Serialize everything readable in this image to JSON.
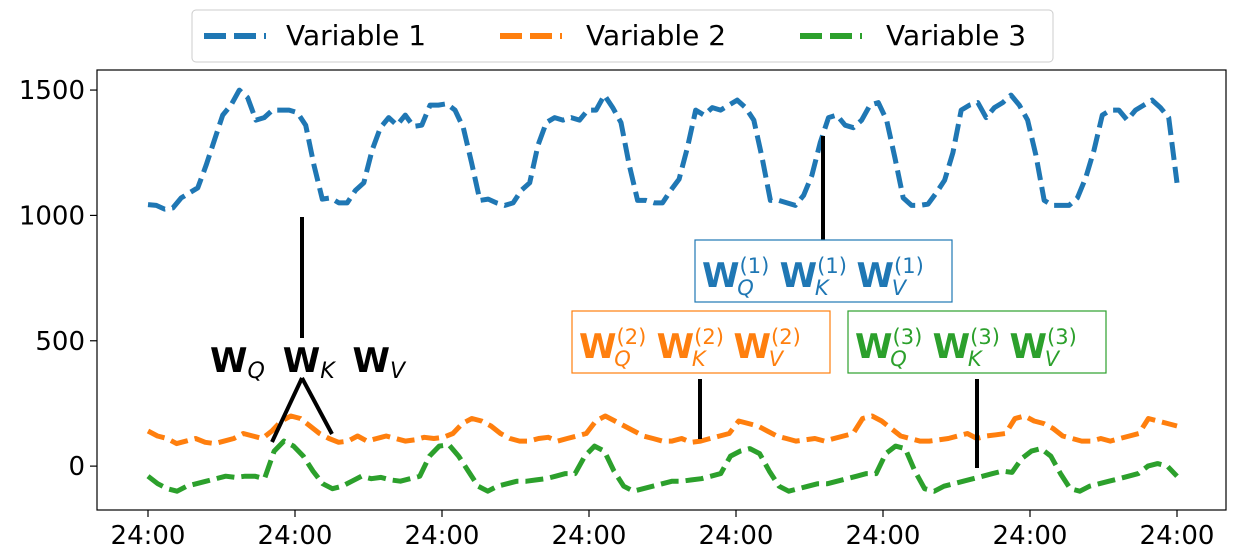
{
  "chart_data": {
    "type": "line",
    "title": "",
    "xlabel": "",
    "ylabel": "",
    "ylim": [
      -175,
      1580
    ],
    "yticks": [
      0,
      500,
      1000,
      1500
    ],
    "xtick_labels": [
      "24:00",
      "24:00",
      "24:00",
      "24:00",
      "24:00",
      "24:00",
      "24:00",
      "24:00"
    ],
    "x_range": [
      0,
      168
    ],
    "legend": {
      "placement": "top-center-outside",
      "columns": 3
    },
    "series": [
      {
        "name": "Variable 1",
        "color": "#1f77b4",
        "style": "dashed",
        "values": [
          1043,
          1040,
          1025,
          1030,
          1070,
          1090,
          1110,
          1200,
          1300,
          1400,
          1440,
          1500,
          1470,
          1380,
          1390,
          1420,
          1420,
          1420,
          1410,
          1360,
          1200,
          1065,
          1070,
          1050,
          1050,
          1100,
          1130,
          1260,
          1350,
          1390,
          1360,
          1400,
          1355,
          1360,
          1440,
          1440,
          1445,
          1420,
          1350,
          1210,
          1060,
          1065,
          1050,
          1040,
          1050,
          1100,
          1130,
          1280,
          1370,
          1390,
          1380,
          1390,
          1380,
          1420,
          1420,
          1480,
          1430,
          1370,
          1200,
          1060,
          1060,
          1050,
          1050,
          1100,
          1145,
          1270,
          1420,
          1400,
          1430,
          1420,
          1440,
          1460,
          1430,
          1380,
          1230,
          1060,
          1060,
          1050,
          1040,
          1080,
          1160,
          1290,
          1390,
          1400,
          1360,
          1350,
          1380,
          1440,
          1450,
          1380,
          1230,
          1070,
          1040,
          1040,
          1045,
          1090,
          1140,
          1250,
          1420,
          1440,
          1450,
          1390,
          1430,
          1450,
          1480,
          1440,
          1380,
          1240,
          1060,
          1040,
          1040,
          1040,
          1070,
          1150,
          1260,
          1400,
          1420,
          1420,
          1380,
          1420,
          1440,
          1460,
          1430,
          1390,
          1130
        ]
      },
      {
        "name": "Variable 2",
        "color": "#ff7f0e",
        "style": "dashed",
        "values": [
          140,
          120,
          110,
          90,
          100,
          110,
          95,
          90,
          100,
          110,
          130,
          120,
          110,
          140,
          180,
          200,
          190,
          160,
          130,
          110,
          95,
          100,
          120,
          100,
          110,
          120,
          110,
          100,
          105,
          115,
          110,
          115,
          130,
          170,
          190,
          180,
          160,
          130,
          110,
          100,
          100,
          110,
          115,
          100,
          110,
          120,
          130,
          180,
          200,
          180,
          160,
          140,
          120,
          110,
          100,
          100,
          110,
          95,
          100,
          110,
          120,
          130,
          180,
          170,
          160,
          140,
          120,
          110,
          100,
          105,
          110,
          100,
          110,
          120,
          130,
          190,
          200,
          180,
          150,
          120,
          110,
          100,
          100,
          105,
          110,
          120,
          130,
          110,
          120,
          125,
          130,
          190,
          200,
          180,
          170,
          150,
          120,
          110,
          100,
          100,
          110,
          100,
          110,
          120,
          130,
          190,
          180,
          170,
          160
        ]
      },
      {
        "name": "Variable 3",
        "color": "#2ca02c",
        "style": "dashed",
        "values": [
          -40,
          -70,
          -90,
          -100,
          -80,
          -70,
          -60,
          -50,
          -40,
          -45,
          -40,
          -40,
          -50,
          60,
          100,
          80,
          40,
          -20,
          -70,
          -90,
          -80,
          -60,
          -40,
          -50,
          -45,
          -55,
          -60,
          -50,
          -40,
          40,
          80,
          85,
          40,
          -20,
          -80,
          -100,
          -80,
          -70,
          -60,
          -60,
          -55,
          -50,
          -40,
          -30,
          -30,
          40,
          80,
          60,
          -20,
          -80,
          -100,
          -90,
          -80,
          -70,
          -60,
          -60,
          -55,
          -50,
          -40,
          -30,
          40,
          60,
          70,
          50,
          -20,
          -80,
          -100,
          -90,
          -80,
          -70,
          -70,
          -60,
          -50,
          -40,
          -30,
          -30,
          50,
          80,
          70,
          -20,
          -90,
          -100,
          -80,
          -70,
          -60,
          -50,
          -40,
          -30,
          -20,
          -25,
          30,
          60,
          70,
          40,
          -30,
          -90,
          -100,
          -80,
          -70,
          -60,
          -50,
          -40,
          -30,
          0,
          10,
          0,
          -40
        ]
      }
    ],
    "annotations": [
      {
        "id": "shared",
        "color": "#000000",
        "boxed": false,
        "q": "Q",
        "k": "K",
        "v": "V",
        "sup": ""
      },
      {
        "id": "var1",
        "color": "#1f77b4",
        "boxed": true,
        "q": "Q",
        "k": "K",
        "v": "V",
        "sup": "(1)"
      },
      {
        "id": "var2",
        "color": "#ff7f0e",
        "boxed": true,
        "q": "Q",
        "k": "K",
        "v": "V",
        "sup": "(2)"
      },
      {
        "id": "var3",
        "color": "#2ca02c",
        "boxed": true,
        "q": "Q",
        "k": "K",
        "v": "V",
        "sup": "(3)"
      }
    ]
  }
}
